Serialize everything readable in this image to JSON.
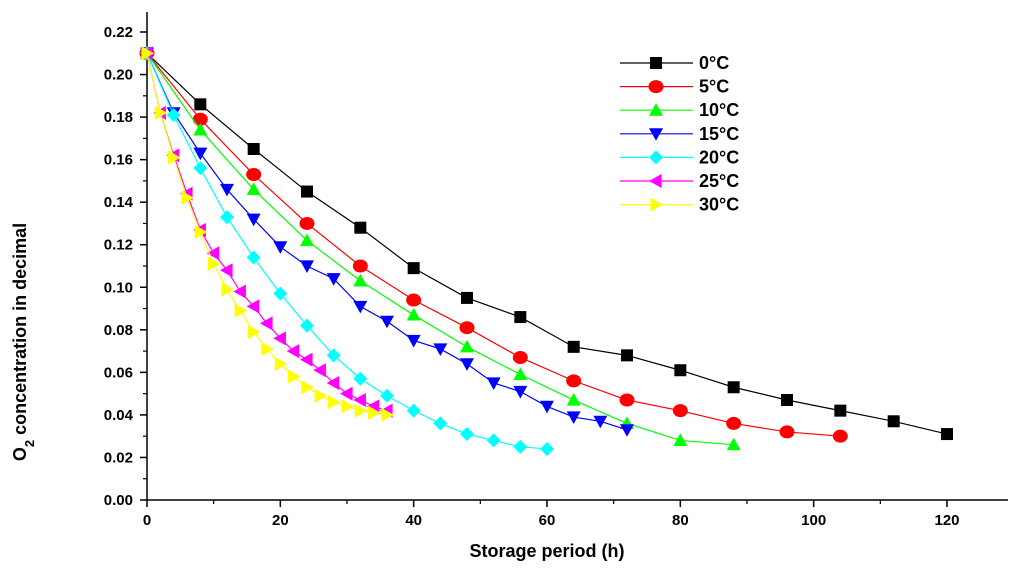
{
  "chart_data": {
    "type": "line",
    "xlabel": "Storage period (h)",
    "ylabel": "O2 concentration in decimal",
    "ylabel_parts": {
      "main": "O",
      "sub": "2",
      "rest": " concentration in decimal"
    },
    "xlim": [
      0,
      130
    ],
    "ylim": [
      0,
      0.22
    ],
    "xticks": [
      0,
      20,
      40,
      60,
      80,
      100,
      120
    ],
    "xtick_labels": [
      "0",
      "20",
      "40",
      "60",
      "80",
      "100",
      "120"
    ],
    "yticks": [
      0,
      0.02,
      0.04,
      0.06,
      0.08,
      0.1,
      0.12,
      0.14,
      0.16,
      0.18,
      0.2,
      0.22
    ],
    "ytick_labels": [
      "0.00",
      "0.02",
      "0.04",
      "0.06",
      "0.08",
      "0.10",
      "0.12",
      "0.14",
      "0.16",
      "0.18",
      "0.20",
      "0.22"
    ],
    "grid": false,
    "legend_position": "top-right",
    "series": [
      {
        "name": "0°C",
        "color": "#000000",
        "marker": "square",
        "x": [
          0,
          8,
          16,
          24,
          32,
          40,
          48,
          56,
          64,
          72,
          80,
          88,
          96,
          104,
          112,
          120
        ],
        "y": [
          0.21,
          0.186,
          0.165,
          0.145,
          0.128,
          0.109,
          0.095,
          0.086,
          0.072,
          0.068,
          0.061,
          0.053,
          0.047,
          0.042,
          0.037,
          0.031
        ]
      },
      {
        "name": "5°C",
        "color": "#ff0000",
        "marker": "circle",
        "x": [
          0,
          8,
          16,
          24,
          32,
          40,
          48,
          56,
          64,
          72,
          80,
          88,
          96,
          104
        ],
        "y": [
          0.21,
          0.179,
          0.153,
          0.13,
          0.11,
          0.094,
          0.081,
          0.067,
          0.056,
          0.047,
          0.042,
          0.036,
          0.032,
          0.03
        ]
      },
      {
        "name": "10°C",
        "color": "#00ff00",
        "marker": "triangle-up",
        "x": [
          0,
          8,
          16,
          24,
          32,
          40,
          48,
          56,
          64,
          72,
          80,
          88
        ],
        "y": [
          0.21,
          0.174,
          0.146,
          0.122,
          0.103,
          0.087,
          0.072,
          0.059,
          0.047,
          0.036,
          0.028,
          0.026
        ]
      },
      {
        "name": "15°C",
        "color": "#0000ff",
        "marker": "triangle-down",
        "x": [
          0,
          4,
          8,
          12,
          16,
          20,
          24,
          28,
          32,
          36,
          40,
          44,
          48,
          52,
          56,
          60,
          64,
          68,
          72
        ],
        "y": [
          0.21,
          0.182,
          0.163,
          0.146,
          0.132,
          0.119,
          0.11,
          0.104,
          0.091,
          0.084,
          0.075,
          0.071,
          0.064,
          0.055,
          0.051,
          0.044,
          0.039,
          0.037,
          0.033
        ]
      },
      {
        "name": "20°C",
        "color": "#00ffff",
        "marker": "diamond",
        "x": [
          0,
          4,
          8,
          12,
          16,
          20,
          24,
          28,
          32,
          36,
          40,
          44,
          48,
          52,
          56,
          60
        ],
        "y": [
          0.21,
          0.181,
          0.156,
          0.133,
          0.114,
          0.097,
          0.082,
          0.068,
          0.057,
          0.049,
          0.042,
          0.036,
          0.031,
          0.028,
          0.025,
          0.024
        ]
      },
      {
        "name": "25°C",
        "color": "#ff00ff",
        "marker": "triangle-left",
        "x": [
          0,
          2,
          4,
          6,
          8,
          10,
          12,
          14,
          16,
          18,
          20,
          22,
          24,
          26,
          28,
          30,
          32,
          34,
          36
        ],
        "y": [
          0.21,
          0.182,
          0.162,
          0.144,
          0.127,
          0.116,
          0.108,
          0.098,
          0.091,
          0.083,
          0.076,
          0.07,
          0.066,
          0.061,
          0.055,
          0.05,
          0.047,
          0.044,
          0.042
        ]
      },
      {
        "name": "30°C",
        "color": "#ffff00",
        "marker": "triangle-right",
        "x": [
          0,
          2,
          4,
          6,
          8,
          10,
          12,
          14,
          16,
          18,
          20,
          22,
          24,
          26,
          28,
          30,
          32,
          34,
          36
        ],
        "y": [
          0.21,
          0.182,
          0.161,
          0.142,
          0.126,
          0.111,
          0.099,
          0.089,
          0.079,
          0.071,
          0.064,
          0.058,
          0.053,
          0.049,
          0.046,
          0.044,
          0.042,
          0.041,
          0.04
        ]
      }
    ]
  }
}
